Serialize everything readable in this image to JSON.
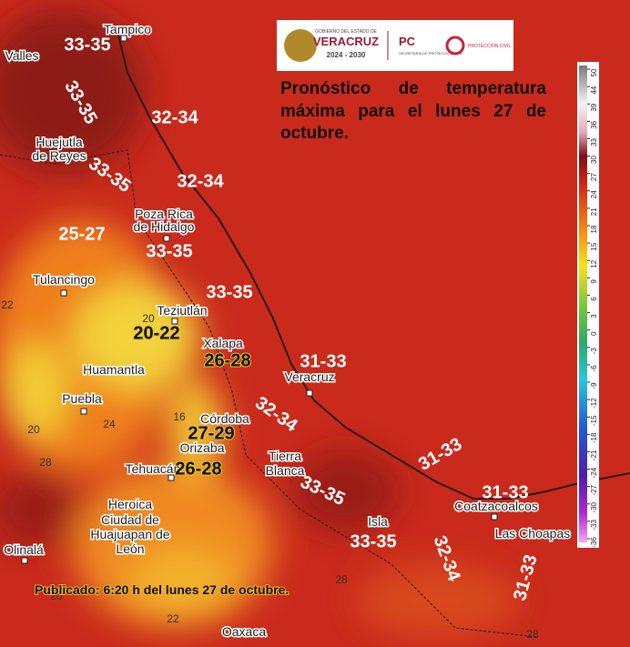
{
  "logo": {
    "state_top": "GOBIERNO DEL ESTADO DE",
    "state_name": "VERACRUZ",
    "period": "2024 - 2030",
    "pc": "PC",
    "pc_sub": "SECRETARÍA DE PROTECCIÓN CIVIL",
    "pc_right": "PROTECCIÓN CIVIL"
  },
  "title": "Pronóstico de temperatura máxima para el lunes 27 de octubre.",
  "published": "Publicado: 6:20 h del lunes 27 de octubre.",
  "cities": [
    "Tampico",
    "Valles",
    "Huejutla",
    "de Reyes",
    "Poza Rica",
    "de Hidalgo",
    "Tulancingo",
    "Teziutlán",
    "Xalapa",
    "Huamantla",
    "Veracruz",
    "Puebla",
    "Córdoba",
    "Orizaba",
    "Tehuacán",
    "Tierra",
    "Blanca",
    "Heroica",
    "Ciudad de",
    "Huajuapan de",
    "León",
    "Isla",
    "Coatzacoalcos",
    "Las Choapas",
    "Olinalá",
    "Oaxaca"
  ],
  "ranges": [
    "33-35",
    "33-35",
    "32-34",
    "33-35",
    "32-34",
    "25-27",
    "33-35",
    "33-35",
    "20-22",
    "26-28",
    "31-33",
    "32-34",
    "27-29",
    "26-28",
    "31-33",
    "33-35",
    "31-33",
    "33-35",
    "32-34",
    "31-33"
  ],
  "contours": [
    "20",
    "16",
    "24",
    "20",
    "28",
    "22",
    "28",
    "22",
    "28",
    "20"
  ],
  "scale": {
    "ticks": [
      50,
      44,
      39,
      36,
      33,
      30,
      27,
      24,
      21,
      18,
      15,
      12,
      9,
      6,
      3,
      0,
      -3,
      -6,
      -9,
      -12,
      -15,
      -18,
      -21,
      -24,
      -27,
      -30,
      -33,
      -36
    ]
  }
}
